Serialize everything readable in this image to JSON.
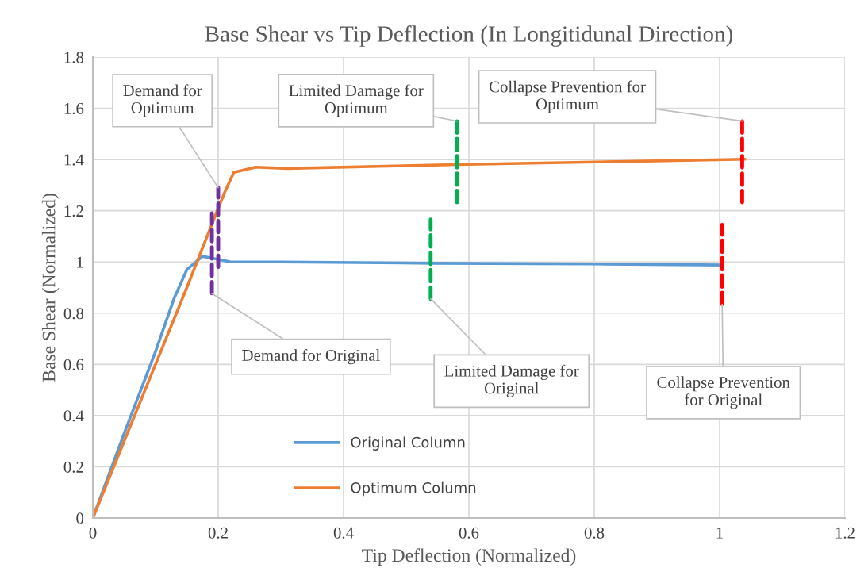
{
  "chart_data": {
    "type": "line",
    "title": "Base Shear vs Tip Deflection (In Longitidunal Direction)",
    "xlabel": "Tip Deflection (Normalized)",
    "ylabel": "Base Shear (Normalized)",
    "xlim": [
      0,
      1.2
    ],
    "xticks": [
      0,
      0.2,
      0.4,
      0.6,
      0.8,
      1,
      1.2
    ],
    "ylim": [
      0,
      1.8
    ],
    "yticks": [
      0,
      0.2,
      0.4,
      0.6,
      0.8,
      1,
      1.2,
      1.4,
      1.6,
      1.8
    ],
    "grid": true,
    "legend": "bottom",
    "marker": "none",
    "series": [
      {
        "name": "Original Column",
        "color": "#5b9bd5",
        "x": [
          0,
          0.05,
          0.1,
          0.13,
          0.15,
          0.175,
          0.2,
          0.22,
          0.3,
          0.54,
          0.8,
          1.004
        ],
        "values": [
          0,
          0.33,
          0.65,
          0.86,
          0.97,
          1.022,
          1.01,
          1.0,
          1.0,
          0.995,
          0.992,
          0.988
        ]
      },
      {
        "name": "Optimum Column",
        "color": "#ed7d31",
        "x": [
          0,
          0.1,
          0.15,
          0.198,
          0.21,
          0.225,
          0.26,
          0.31,
          0.58,
          1.04
        ],
        "values": [
          0,
          0.6,
          0.9,
          1.197,
          1.27,
          1.35,
          1.37,
          1.365,
          1.38,
          1.401
        ]
      },
      {
        "color": "#7030a0",
        "line_style": "dashed",
        "x": [
          0.19,
          0.19
        ],
        "values": [
          0.877,
          1.19
        ]
      },
      {
        "color": "#7030a0",
        "line_style": "dashed",
        "x": [
          0.2,
          0.2
        ],
        "values": [
          0.98,
          1.29
        ]
      },
      {
        "color": "#00b050",
        "line_style": "dashed",
        "x": [
          0.539,
          0.539
        ],
        "values": [
          0.856,
          1.166
        ]
      },
      {
        "color": "#00b050",
        "line_style": "dashed",
        "x": [
          0.581,
          0.581
        ],
        "values": [
          1.233,
          1.55
        ]
      },
      {
        "color": "#ff0000",
        "line_style": "dashed",
        "x": [
          1.004,
          1.004
        ],
        "values": [
          0.835,
          1.145
        ]
      },
      {
        "color": "#ff0000",
        "line_style": "dashed",
        "x": [
          1.036,
          1.036
        ],
        "values": [
          1.233,
          1.55
        ]
      }
    ],
    "annotations": [
      {
        "text": "Demand for\nOptimum",
        "x": 0.2,
        "y": 1.29
      },
      {
        "text": "Limited Damage for\nOptimum",
        "x": 0.581,
        "y": 1.55
      },
      {
        "text": "Collapse Prevention for\nOptimum",
        "x": 1.036,
        "y": 1.55
      },
      {
        "text": "Demand for Original",
        "x": 0.19,
        "y": 0.877
      },
      {
        "text": "Limited Damage for\nOriginal",
        "x": 0.539,
        "y": 0.856
      },
      {
        "text": "Collapse Prevention\nfor Original",
        "x": 1.004,
        "y": 0.835
      }
    ]
  }
}
